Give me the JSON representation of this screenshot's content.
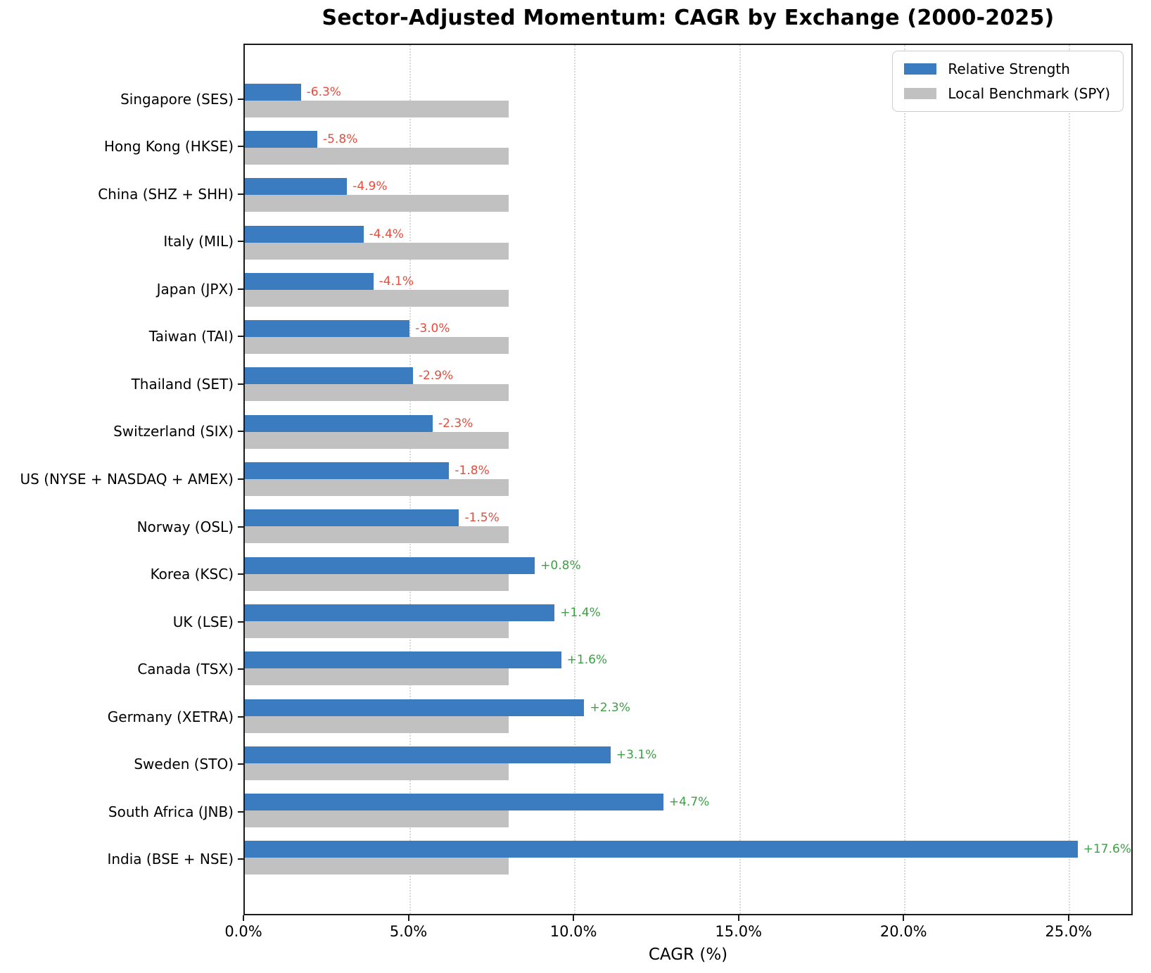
{
  "title": "Sector-Adjusted Momentum: CAGR by Exchange (2000-2025)",
  "xlabel": "CAGR (%)",
  "colors": {
    "relative_strength_bar": "#3b7bbf",
    "benchmark_bar": "#c1c1c1",
    "positive_annotation": "#3ca045",
    "negative_annotation": "#e74c3c",
    "gridline": "#d8d8d8",
    "spine": "#1a1a1a"
  },
  "legend": {
    "position": "upper right",
    "entries": [
      {
        "label": "Relative Strength",
        "color": "#3b7bbf"
      },
      {
        "label": "Local Benchmark (SPY)",
        "color": "#c1c1c1"
      }
    ]
  },
  "x_axis": {
    "tick_values": [
      0,
      5,
      10,
      15,
      20,
      25
    ],
    "tick_labels": [
      "0.0%",
      "5.0%",
      "10.0%",
      "15.0%",
      "20.0%",
      "25.0%"
    ],
    "gridline_values": [
      5,
      10,
      15,
      20,
      25
    ],
    "max": 26.9
  },
  "chart_data": {
    "type": "bar",
    "orientation": "horizontal",
    "title": "Sector-Adjusted Momentum: CAGR by Exchange (2000-2025)",
    "xlabel": "CAGR (%)",
    "xlim": [
      0,
      26.9
    ],
    "grid": "vertical dotted lines every 5%",
    "legend_position": "upper right",
    "categories": [
      "Singapore (SES)",
      "Hong Kong (HKSE)",
      "China (SHZ + SHH)",
      "Italy (MIL)",
      "Japan (JPX)",
      "Taiwan (TAI)",
      "Thailand (SET)",
      "Switzerland (SIX)",
      "US (NYSE + NASDAQ + AMEX)",
      "Norway (OSL)",
      "Korea (KSC)",
      "UK (LSE)",
      "Canada (TSX)",
      "Germany (XETRA)",
      "Sweden (STO)",
      "South Africa (JNB)",
      "India (BSE + NSE)"
    ],
    "series": [
      {
        "name": "Relative Strength",
        "values": [
          1.7,
          2.2,
          3.1,
          3.6,
          3.9,
          5.0,
          5.1,
          5.7,
          6.2,
          6.5,
          8.8,
          9.4,
          9.6,
          10.3,
          11.1,
          12.7,
          25.6
        ]
      },
      {
        "name": "Local Benchmark (SPY)",
        "values": [
          8.0,
          8.0,
          8.0,
          8.0,
          8.0,
          8.0,
          8.0,
          8.0,
          8.0,
          8.0,
          8.0,
          8.0,
          8.0,
          8.0,
          8.0,
          8.0,
          8.0
        ]
      }
    ],
    "annotations": [
      "-6.3%",
      "-5.8%",
      "-4.9%",
      "-4.4%",
      "-4.1%",
      "-3.0%",
      "-2.9%",
      "-2.3%",
      "-1.8%",
      "-1.5%",
      "+0.8%",
      "+1.4%",
      "+1.6%",
      "+2.3%",
      "+3.1%",
      "+4.7%",
      "+17.6%"
    ]
  }
}
